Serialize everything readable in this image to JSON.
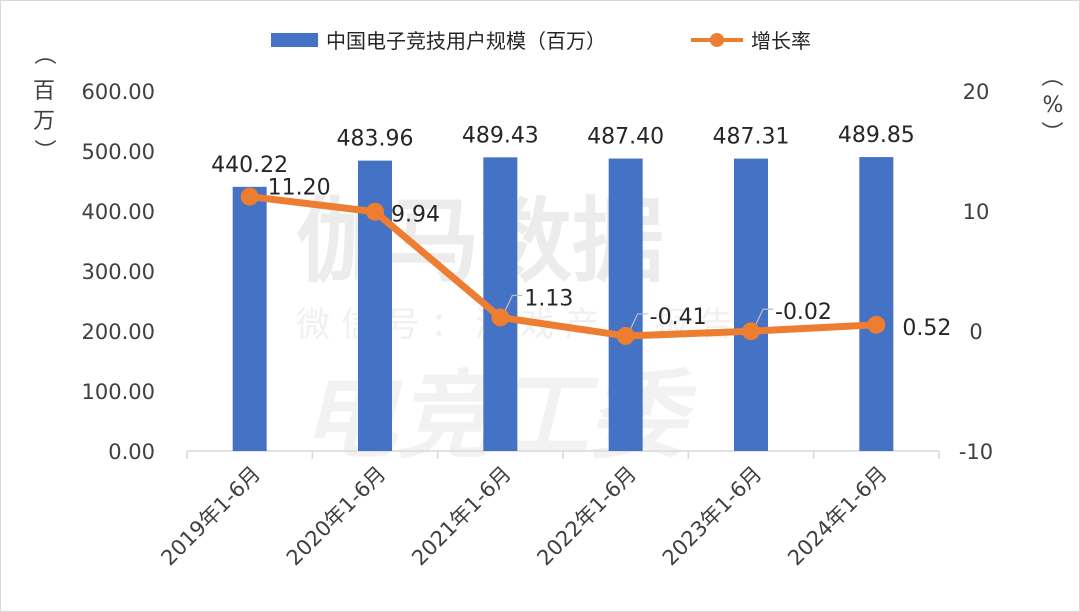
{
  "watermark": {
    "line1": "伽马数据",
    "line2": "微 信 号 ： 游 戏 产 业 报 告",
    "line3": "电竞工委"
  },
  "colors": {
    "bar": "#4472c4",
    "line": "#ed7d31",
    "grid": "#d9d9d9",
    "text": "#404040"
  },
  "chart_data": {
    "type": "bar+line",
    "categories": [
      "2019年1-6月",
      "2020年1-6月",
      "2021年1-6月",
      "2022年1-6月",
      "2023年1-6月",
      "2024年1-6月"
    ],
    "series": [
      {
        "name": "中国电子竞技用户规模（百万）",
        "type": "bar",
        "axis": "left",
        "values": [
          440.22,
          483.96,
          489.43,
          487.4,
          487.31,
          489.85
        ],
        "labels": [
          "440.22",
          "483.96",
          "489.43",
          "487.40",
          "487.31",
          "489.85"
        ]
      },
      {
        "name": "增长率",
        "type": "line",
        "axis": "right",
        "values": [
          11.2,
          9.94,
          1.13,
          -0.41,
          -0.02,
          0.52
        ],
        "labels": [
          "11.20",
          "9.94",
          "1.13",
          "-0.41",
          "-0.02",
          "0.52"
        ]
      }
    ],
    "left_axis": {
      "unit": [
        "（",
        "百",
        "万",
        "）"
      ],
      "range": [
        0,
        600
      ],
      "ticks": [
        "0.00",
        "100.00",
        "200.00",
        "300.00",
        "400.00",
        "500.00",
        "600.00"
      ]
    },
    "right_axis": {
      "unit": [
        "（",
        "%",
        "）"
      ],
      "range": [
        -10,
        20
      ],
      "ticks": [
        "-10",
        "0",
        "10",
        "20"
      ]
    },
    "legend_position": "top-center"
  }
}
